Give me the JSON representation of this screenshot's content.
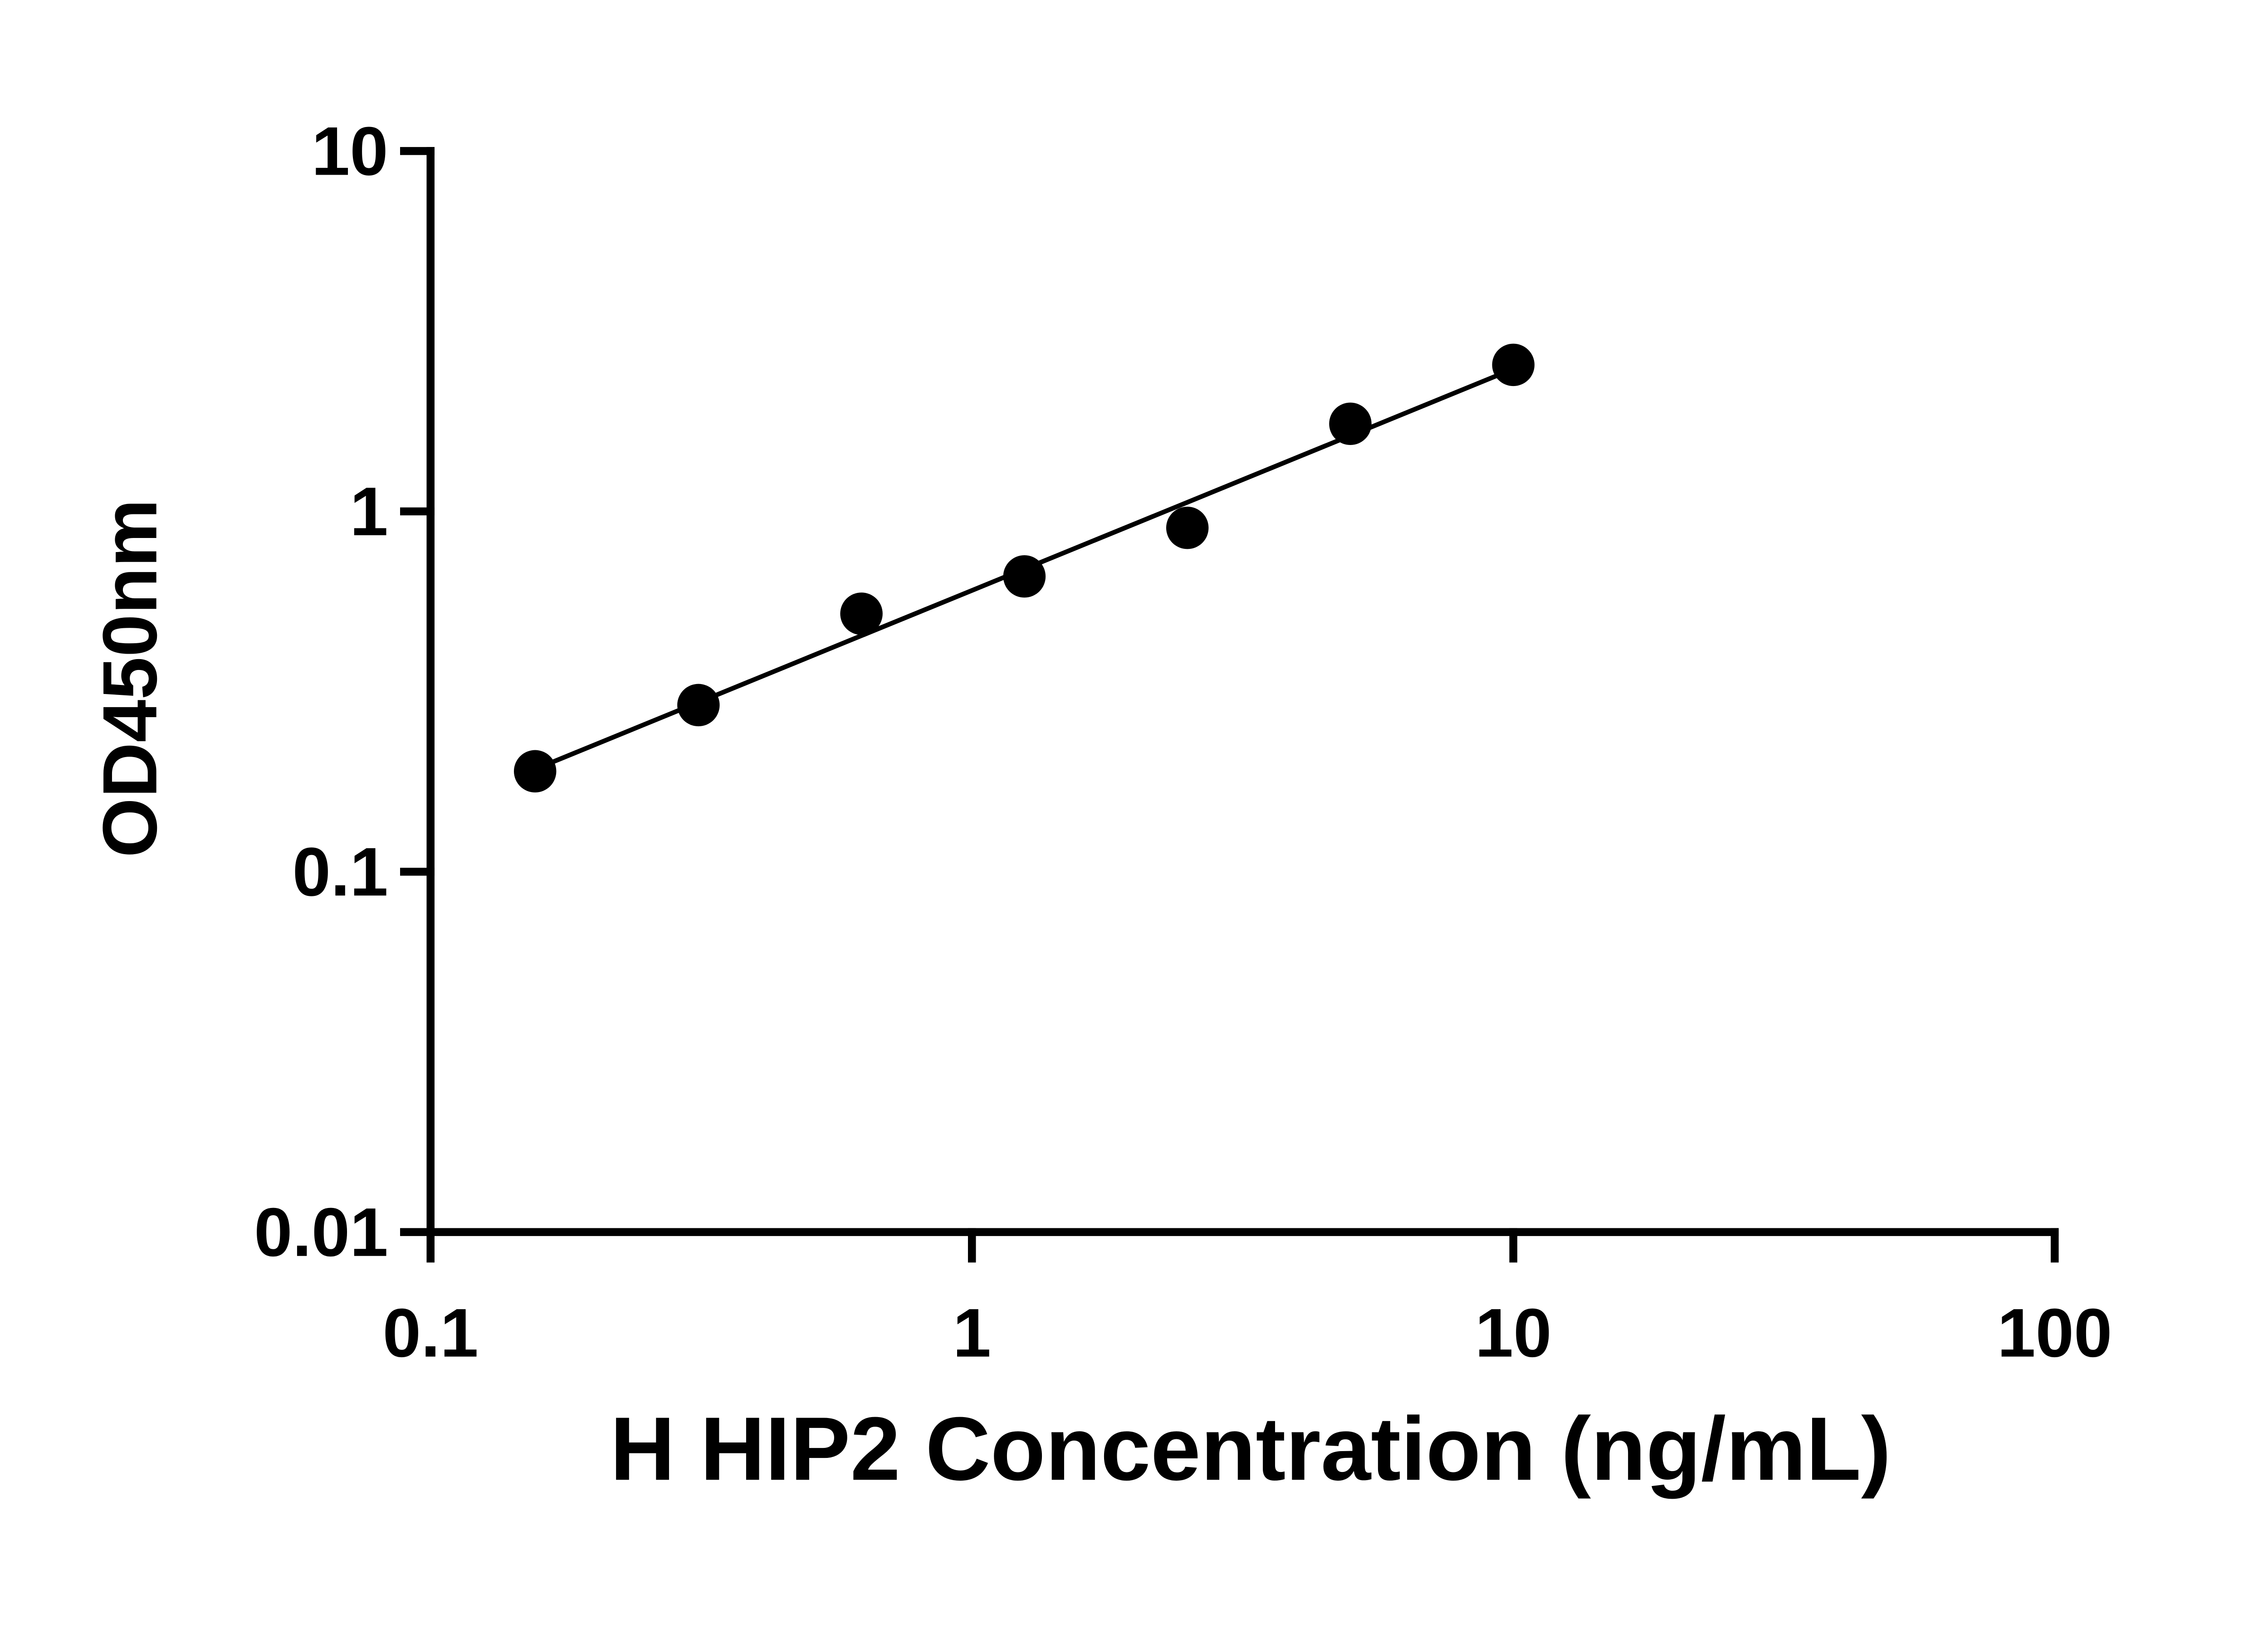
{
  "figure": {
    "background_color": "#ffffff"
  },
  "chart_data": {
    "type": "scatter",
    "title": "",
    "xlabel": "H HIP2 Concentration (ng/mL)",
    "ylabel": "OD450nm",
    "x_scale": "log",
    "y_scale": "log",
    "xlim": [
      0.1,
      100
    ],
    "ylim": [
      0.01,
      10
    ],
    "x_ticks": [
      0.1,
      1,
      10,
      100
    ],
    "x_tick_labels": [
      "0.1",
      "1",
      "10",
      "100"
    ],
    "y_ticks": [
      0.01,
      0.1,
      1,
      10
    ],
    "y_tick_labels": [
      "0.01",
      "0.1",
      "1",
      "10"
    ],
    "grid": false,
    "legend": null,
    "series": [
      {
        "name": "standard-curve-points",
        "marker": "circle",
        "x": [
          0.156,
          0.3125,
          0.625,
          1.25,
          2.5,
          5,
          10
        ],
        "y": [
          0.19,
          0.29,
          0.52,
          0.66,
          0.9,
          1.75,
          2.55
        ]
      }
    ],
    "trendline": {
      "type": "linear-fit-loglog",
      "x_range": [
        0.156,
        10
      ]
    },
    "colors": {
      "axis": "#000000",
      "tick_text": "#000000",
      "points": "#000000",
      "trend_line": "#000000",
      "axis_title": "#000000"
    }
  }
}
